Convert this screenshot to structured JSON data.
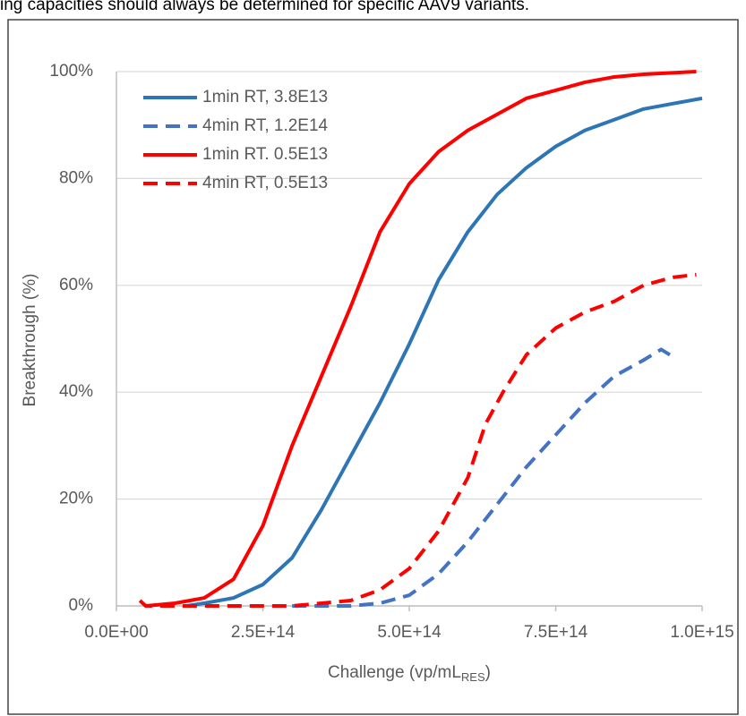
{
  "caption": "ing capacities should always be determined for specific AAV9 variants.",
  "chart_data": {
    "type": "line",
    "y_label": "Breakthrough (%)",
    "x_label": {
      "main": "Challenge (vp/mL",
      "sub": "RES",
      "end": ")"
    },
    "xlim": [
      0,
      1000000000000000.0
    ],
    "xticks": [
      {
        "value": 0,
        "label": "0.0E+00"
      },
      {
        "value": 250000000000000.0,
        "label": "2.5E+14"
      },
      {
        "value": 500000000000000.0,
        "label": "5.0E+14"
      },
      {
        "value": 750000000000000.0,
        "label": "7.5E+14"
      },
      {
        "value": 1000000000000000.0,
        "label": "1.0E+15"
      }
    ],
    "ylim": [
      0,
      100
    ],
    "yticks": [
      {
        "value": 0,
        "label": "0%"
      },
      {
        "value": 20,
        "label": "20%"
      },
      {
        "value": 40,
        "label": "40%"
      },
      {
        "value": 60,
        "label": "60%"
      },
      {
        "value": 80,
        "label": "80%"
      },
      {
        "value": 100,
        "label": "100%"
      }
    ],
    "grid": true,
    "legend": "upper-left",
    "series": [
      {
        "name": "1min RT, 3.8E13",
        "color": "#2e75b6",
        "dash": false,
        "x": [
          120000000000000.0,
          150000000000000.0,
          200000000000000.0,
          250000000000000.0,
          300000000000000.0,
          350000000000000.0,
          400000000000000.0,
          450000000000000.0,
          500000000000000.0,
          550000000000000.0,
          600000000000000.0,
          650000000000000.0,
          700000000000000.0,
          750000000000000.0,
          800000000000000.0,
          850000000000000.0,
          900000000000000.0,
          950000000000000.0,
          1000000000000000.0
        ],
        "values": [
          0,
          0.5,
          1.5,
          4,
          9,
          18,
          28,
          38,
          49,
          61,
          70,
          77,
          82,
          86,
          89,
          91,
          93,
          94,
          95
        ]
      },
      {
        "name": "4min RT, 1.2E14",
        "color": "#4472c4",
        "dash": true,
        "x": [
          300000000000000.0,
          400000000000000.0,
          450000000000000.0,
          500000000000000.0,
          550000000000000.0,
          600000000000000.0,
          650000000000000.0,
          700000000000000.0,
          750000000000000.0,
          800000000000000.0,
          850000000000000.0,
          900000000000000.0,
          930000000000000.0,
          945000000000000.0
        ],
        "values": [
          0,
          0,
          0.5,
          2,
          6,
          12,
          19,
          26,
          32,
          38,
          43,
          46,
          48,
          47
        ]
      },
      {
        "name": "1min RT. 0.5E13",
        "color": "#ff0000",
        "dash": false,
        "x": [
          50000000000000.0,
          100000000000000.0,
          150000000000000.0,
          200000000000000.0,
          250000000000000.0,
          300000000000000.0,
          350000000000000.0,
          400000000000000.0,
          450000000000000.0,
          500000000000000.0,
          550000000000000.0,
          600000000000000.0,
          650000000000000.0,
          700000000000000.0,
          750000000000000.0,
          800000000000000.0,
          850000000000000.0,
          900000000000000.0,
          990000000000000.0
        ],
        "values": [
          0,
          0.5,
          1.5,
          5,
          15,
          30,
          43,
          56,
          70,
          79,
          85,
          89,
          92,
          95,
          96.5,
          98,
          99,
          99.5,
          100
        ]
      },
      {
        "name": "4min RT, 0.5E13",
        "color": "#ff0000",
        "dash": true,
        "x": [
          40000000000000.0,
          50000000000000.0,
          100000000000000.0,
          300000000000000.0,
          400000000000000.0,
          450000000000000.0,
          500000000000000.0,
          550000000000000.0,
          600000000000000.0,
          630000000000000.0,
          660000000000000.0,
          700000000000000.0,
          750000000000000.0,
          800000000000000.0,
          850000000000000.0,
          900000000000000.0,
          950000000000000.0,
          990000000000000.0
        ],
        "values": [
          1,
          0,
          0,
          0,
          1,
          3,
          7,
          14,
          24,
          34,
          40,
          47,
          52,
          55,
          57,
          60,
          61.5,
          62
        ]
      }
    ]
  }
}
